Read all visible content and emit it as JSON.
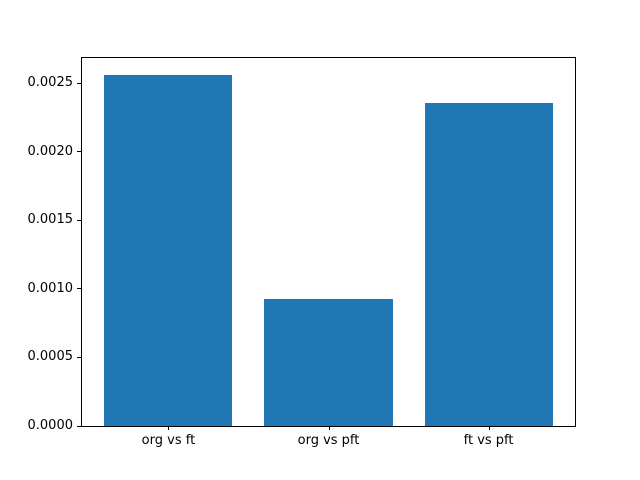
{
  "chart_data": {
    "type": "bar",
    "title": "",
    "xlabel": "",
    "ylabel": "",
    "categories": [
      "org vs ft",
      "org vs pft",
      "ft vs pft"
    ],
    "values": [
      0.00256,
      0.00093,
      0.00236
    ],
    "bar_color": "#1f77b4",
    "bar_width": 0.8,
    "xlim": [
      -0.54,
      2.54
    ],
    "ylim": [
      0,
      0.002686
    ],
    "ytick_values": [
      0.0,
      0.0005,
      0.001,
      0.0015,
      0.002,
      0.0025
    ],
    "ytick_labels": [
      "0.0000",
      "0.0005",
      "0.0010",
      "0.0015",
      "0.0020",
      "0.0025"
    ],
    "grid": false,
    "legend": null,
    "frame_color": "#000000",
    "background_color": "#ffffff"
  }
}
